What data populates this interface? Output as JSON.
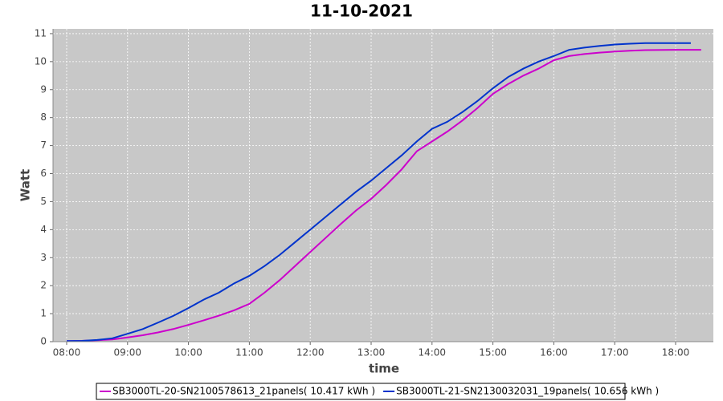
{
  "chart_data": {
    "type": "line",
    "title": "11-10-2021",
    "x_label": "time",
    "y_label": "Watt",
    "xlim": [
      7.776,
      18.62
    ],
    "ylim": [
      0,
      11.17
    ],
    "xticks": [
      {
        "value": 8,
        "label": "08:00"
      },
      {
        "value": 9,
        "label": "09:00"
      },
      {
        "value": 10,
        "label": "10:00"
      },
      {
        "value": 11,
        "label": "11:00"
      },
      {
        "value": 12,
        "label": "12:00"
      },
      {
        "value": 13,
        "label": "13:00"
      },
      {
        "value": 14,
        "label": "14:00"
      },
      {
        "value": 15,
        "label": "15:00"
      },
      {
        "value": 16,
        "label": "16:00"
      },
      {
        "value": 17,
        "label": "17:00"
      },
      {
        "value": 18,
        "label": "18:00"
      }
    ],
    "yticks": [
      0,
      1,
      2,
      3,
      4,
      5,
      6,
      7,
      8,
      9,
      10,
      11
    ],
    "grid": true,
    "legend": "bottom",
    "series": [
      {
        "name": "SB3000TL-20-SN2100578613_21panels( 10.417 kWh )",
        "color": "#cc00cc",
        "x": [
          8.0,
          8.25,
          8.5,
          8.75,
          9.0,
          9.25,
          9.5,
          9.75,
          10.0,
          10.25,
          10.5,
          10.75,
          11.0,
          11.25,
          11.5,
          11.75,
          12.0,
          12.25,
          12.5,
          12.75,
          13.0,
          13.25,
          13.5,
          13.75,
          14.0,
          14.25,
          14.5,
          14.75,
          15.0,
          15.25,
          15.5,
          15.75,
          16.0,
          16.25,
          16.5,
          16.75,
          17.0,
          17.25,
          17.5,
          18.0,
          18.42
        ],
        "values": [
          0.02,
          0.03,
          0.05,
          0.08,
          0.15,
          0.23,
          0.33,
          0.45,
          0.6,
          0.76,
          0.93,
          1.12,
          1.35,
          1.75,
          2.2,
          2.7,
          3.2,
          3.7,
          4.2,
          4.68,
          5.1,
          5.6,
          6.15,
          6.8,
          7.15,
          7.5,
          7.9,
          8.35,
          8.85,
          9.2,
          9.5,
          9.75,
          10.05,
          10.2,
          10.27,
          10.32,
          10.36,
          10.39,
          10.41,
          10.42,
          10.42
        ]
      },
      {
        "name": "SB3000TL-21-SN2130032031_19panels( 10.656 kWh )",
        "color": "#0033cc",
        "x": [
          8.0,
          8.25,
          8.5,
          8.75,
          9.0,
          9.25,
          9.5,
          9.75,
          10.0,
          10.25,
          10.5,
          10.75,
          11.0,
          11.25,
          11.5,
          11.75,
          12.0,
          12.25,
          12.5,
          12.75,
          13.0,
          13.25,
          13.5,
          13.75,
          14.0,
          14.25,
          14.5,
          14.75,
          15.0,
          15.25,
          15.5,
          15.75,
          16.0,
          16.25,
          16.5,
          16.75,
          17.0,
          17.25,
          17.5,
          18.0,
          18.25
        ],
        "values": [
          0.02,
          0.03,
          0.06,
          0.12,
          0.28,
          0.45,
          0.68,
          0.92,
          1.2,
          1.5,
          1.75,
          2.08,
          2.35,
          2.7,
          3.1,
          3.55,
          4.0,
          4.45,
          4.9,
          5.35,
          5.75,
          6.2,
          6.65,
          7.15,
          7.6,
          7.85,
          8.2,
          8.6,
          9.05,
          9.45,
          9.75,
          10.0,
          10.2,
          10.42,
          10.5,
          10.56,
          10.61,
          10.64,
          10.66,
          10.66,
          10.66
        ]
      }
    ]
  }
}
